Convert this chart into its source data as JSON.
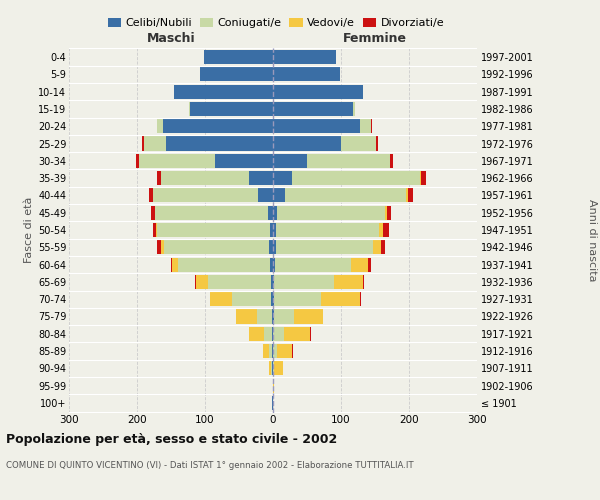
{
  "age_groups": [
    "100+",
    "95-99",
    "90-94",
    "85-89",
    "80-84",
    "75-79",
    "70-74",
    "65-69",
    "60-64",
    "55-59",
    "50-54",
    "45-49",
    "40-44",
    "35-39",
    "30-34",
    "25-29",
    "20-24",
    "15-19",
    "10-14",
    "5-9",
    "0-4"
  ],
  "birth_years": [
    "≤ 1901",
    "1902-1906",
    "1907-1911",
    "1912-1916",
    "1917-1921",
    "1922-1926",
    "1927-1931",
    "1932-1936",
    "1937-1941",
    "1942-1946",
    "1947-1951",
    "1952-1956",
    "1957-1961",
    "1962-1966",
    "1967-1971",
    "1972-1976",
    "1977-1981",
    "1982-1986",
    "1987-1991",
    "1992-1996",
    "1997-2001"
  ],
  "maschi": {
    "celibi": [
      1,
      0,
      1,
      1,
      1,
      2,
      3,
      3,
      4,
      6,
      5,
      8,
      22,
      35,
      85,
      158,
      162,
      122,
      145,
      107,
      102
    ],
    "coniugati": [
      0,
      0,
      2,
      5,
      12,
      22,
      57,
      92,
      135,
      155,
      165,
      165,
      155,
      130,
      112,
      32,
      8,
      2,
      0,
      0,
      0
    ],
    "vedovi": [
      0,
      0,
      3,
      9,
      22,
      30,
      32,
      18,
      9,
      3,
      2,
      1,
      0,
      0,
      0,
      0,
      0,
      0,
      0,
      0,
      0
    ],
    "divorziati": [
      0,
      0,
      0,
      0,
      0,
      0,
      0,
      1,
      2,
      6,
      5,
      5,
      5,
      5,
      5,
      2,
      1,
      0,
      0,
      0,
      0
    ]
  },
  "femmine": {
    "nubili": [
      0,
      0,
      0,
      0,
      0,
      1,
      2,
      2,
      3,
      5,
      4,
      6,
      18,
      28,
      50,
      100,
      128,
      118,
      132,
      98,
      93
    ],
    "coniugate": [
      0,
      0,
      2,
      6,
      16,
      30,
      68,
      88,
      112,
      142,
      152,
      158,
      178,
      188,
      122,
      52,
      16,
      3,
      0,
      0,
      0
    ],
    "vedove": [
      0,
      2,
      12,
      22,
      38,
      42,
      58,
      42,
      24,
      12,
      6,
      4,
      2,
      1,
      0,
      0,
      0,
      0,
      0,
      0,
      0
    ],
    "divorziate": [
      0,
      0,
      0,
      2,
      2,
      1,
      1,
      2,
      5,
      6,
      8,
      6,
      8,
      8,
      5,
      2,
      2,
      0,
      0,
      0,
      0
    ]
  },
  "colors": {
    "celibi_nubili": "#3a6ea5",
    "coniugati": "#c8d9a5",
    "vedovi": "#f5c842",
    "divorziati": "#cc1111"
  },
  "xlim": 300,
  "title": "Popolazione per età, sesso e stato civile - 2002",
  "subtitle": "COMUNE DI QUINTO VICENTINO (VI) - Dati ISTAT 1° gennaio 2002 - Elaborazione TUTTITALIA.IT",
  "ylabel_left": "Fasce di età",
  "ylabel_right": "Anni di nascita",
  "label_maschi": "Maschi",
  "label_femmine": "Femmine",
  "background_color": "#f0f0e8"
}
